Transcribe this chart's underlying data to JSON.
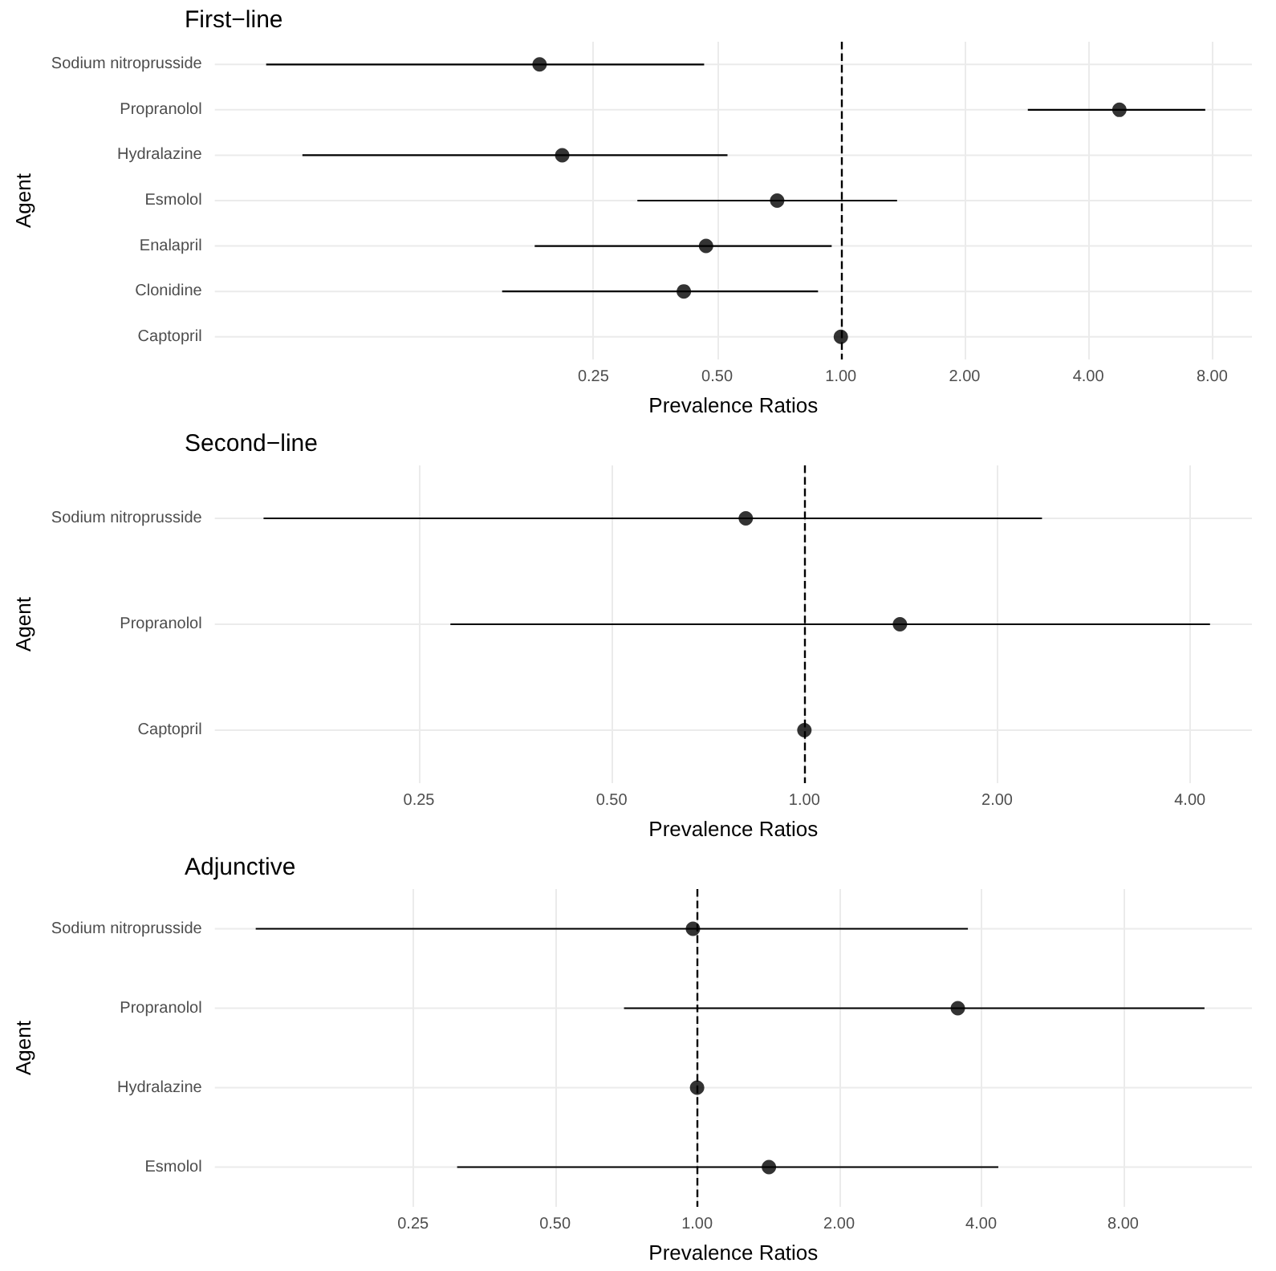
{
  "chart_data": [
    {
      "type": "scatter",
      "title": "First−line",
      "xlabel": "Prevalence Ratios",
      "ylabel": "Agent",
      "orientation": "horizontal",
      "log": "x",
      "grid": true,
      "marker": "circle",
      "color": "#000000",
      "categories": [
        "Sodium nitroprusside",
        "Propranolol",
        "Hydralazine",
        "Esmolol",
        "Enalapril",
        "Clonidine",
        "Captopril"
      ],
      "values": [
        0.185,
        4.76,
        0.21,
        0.7,
        0.47,
        0.415,
        1
      ],
      "errors": [
        [
          0.04,
          0.465
        ],
        [
          2.85,
          7.7
        ],
        [
          0.049,
          0.53
        ],
        [
          0.32,
          1.37
        ],
        [
          0.18,
          0.95
        ],
        [
          0.15,
          0.88
        ],
        null
      ],
      "xlim": [
        0.03,
        10
      ],
      "xticks": [
        {
          "value": 0.25,
          "label": "0.25"
        },
        {
          "value": 0.5,
          "label": "0.50"
        },
        {
          "value": 1,
          "label": "1.00"
        },
        {
          "value": 2,
          "label": "2.00"
        },
        {
          "value": 4,
          "label": "4.00"
        },
        {
          "value": 8,
          "label": "8.00"
        }
      ],
      "ref_lines": [
        {
          "axis": "x",
          "value": 1,
          "line_style": "dashed",
          "color": "#000000"
        }
      ]
    },
    {
      "type": "scatter",
      "title": "Second−line",
      "xlabel": "Prevalence Ratios",
      "ylabel": "Agent",
      "orientation": "horizontal",
      "log": "x",
      "grid": true,
      "marker": "circle",
      "color": "#000000",
      "categories": [
        "Sodium nitroprusside",
        "Propranolol",
        "Captopril"
      ],
      "values": [
        0.81,
        1.41,
        1
      ],
      "errors": [
        [
          0.143,
          2.35
        ],
        [
          0.28,
          4.3
        ],
        null
      ],
      "xlim": [
        0.12,
        5
      ],
      "xticks": [
        {
          "value": 0.25,
          "label": "0.25"
        },
        {
          "value": 0.5,
          "label": "0.50"
        },
        {
          "value": 1,
          "label": "1.00"
        },
        {
          "value": 2,
          "label": "2.00"
        },
        {
          "value": 4,
          "label": "4.00"
        }
      ],
      "ref_lines": [
        {
          "axis": "x",
          "value": 1,
          "line_style": "dashed",
          "color": "#000000"
        }
      ]
    },
    {
      "type": "scatter",
      "title": "Adjunctive",
      "xlabel": "Prevalence Ratios",
      "ylabel": "Agent",
      "orientation": "horizontal",
      "log": "x",
      "grid": true,
      "marker": "circle",
      "color": "#000000",
      "categories": [
        "Sodium nitroprusside",
        "Propranolol",
        "Hydralazine",
        "Esmolol"
      ],
      "values": [
        0.98,
        3.57,
        1,
        1.42
      ],
      "errors": [
        [
          0.116,
          3.75
        ],
        [
          0.7,
          11.9
        ],
        null,
        [
          0.31,
          4.35
        ]
      ],
      "xlim": [
        0.095,
        15
      ],
      "xticks": [
        {
          "value": 0.25,
          "label": "0.25"
        },
        {
          "value": 0.5,
          "label": "0.50"
        },
        {
          "value": 1,
          "label": "1.00"
        },
        {
          "value": 2,
          "label": "2.00"
        },
        {
          "value": 4,
          "label": "4.00"
        },
        {
          "value": 8,
          "label": "8.00"
        }
      ],
      "ref_lines": [
        {
          "axis": "x",
          "value": 1,
          "line_style": "dashed",
          "color": "#000000"
        }
      ]
    }
  ]
}
